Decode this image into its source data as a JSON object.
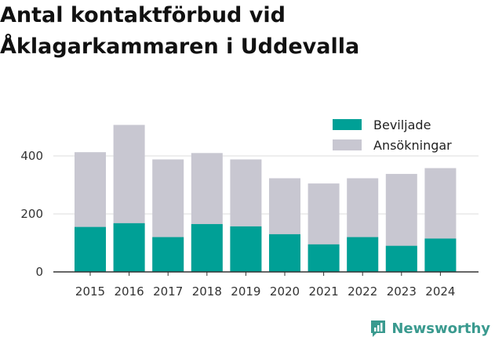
{
  "chart_data": {
    "type": "bar",
    "stacked": true,
    "title": "Antal kontaktförbud vid Åklagarkammaren i Uddevalla",
    "categories": [
      "2015",
      "2016",
      "2017",
      "2018",
      "2019",
      "2020",
      "2021",
      "2022",
      "2023",
      "2024"
    ],
    "series": [
      {
        "name": "Beviljade",
        "color": "#00a096",
        "values": [
          155,
          168,
          120,
          165,
          157,
          130,
          95,
          120,
          90,
          115
        ]
      },
      {
        "name": "Ansökningar",
        "color": "#c8c7d1",
        "totals": [
          413,
          507,
          388,
          410,
          388,
          323,
          305,
          323,
          338,
          358
        ]
      }
    ],
    "ylim": [
      0,
      540
    ],
    "yticks": [
      0,
      200,
      400
    ],
    "grid": true,
    "legend": "top-right"
  },
  "brand": {
    "name": "Newsworthy",
    "color": "#3a9a8f"
  }
}
